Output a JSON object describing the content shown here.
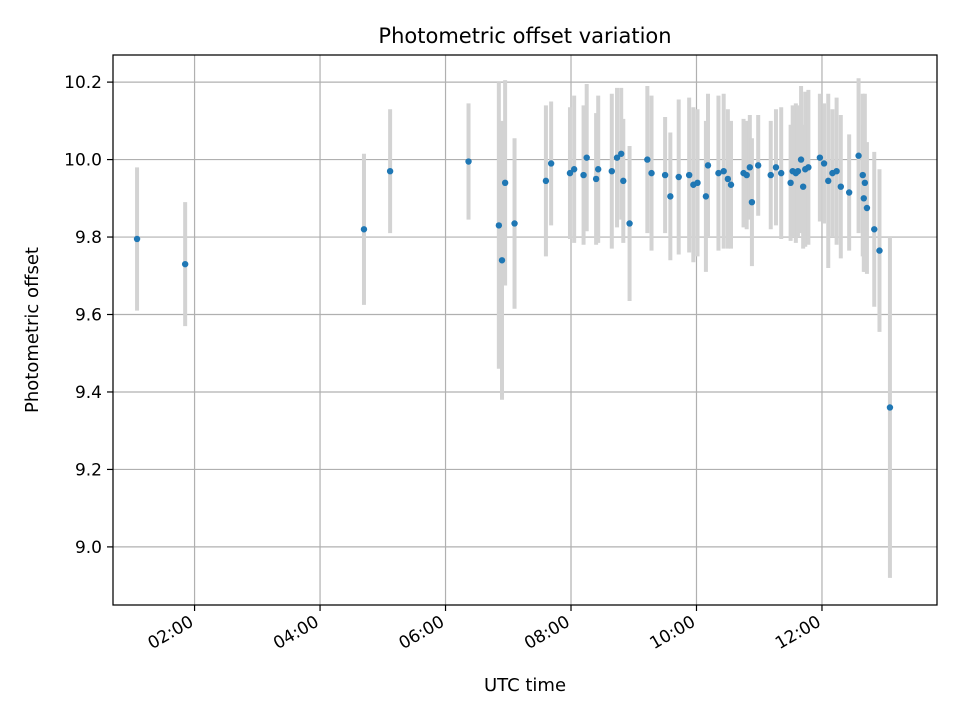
{
  "chart_data": {
    "type": "scatter",
    "title": "Photometric offset variation",
    "xlabel": "UTC time",
    "ylabel": "Photometric offset",
    "xlim": [
      "00:42",
      "13:50"
    ],
    "ylim": [
      8.85,
      10.27
    ],
    "x_ticks": [
      "02:00",
      "04:00",
      "06:00",
      "08:00",
      "10:00",
      "12:00"
    ],
    "y_ticks": [
      "9.0",
      "9.2",
      "9.4",
      "9.6",
      "9.8",
      "10.0",
      "10.2"
    ],
    "grid": true,
    "colors": {
      "point": "#1f77b4",
      "errorbar": "#d3d3d3",
      "grid": "#b0b0b0",
      "axis": "#000000"
    },
    "points": [
      {
        "x": "01:05",
        "y": 9.795,
        "err": 0.185
      },
      {
        "x": "01:51",
        "y": 9.73,
        "err": 0.16
      },
      {
        "x": "04:42",
        "y": 9.82,
        "err": 0.195
      },
      {
        "x": "05:07",
        "y": 9.97,
        "err": 0.16
      },
      {
        "x": "06:22",
        "y": 9.995,
        "err": 0.15
      },
      {
        "x": "06:51",
        "y": 9.83,
        "err": 0.37
      },
      {
        "x": "06:54",
        "y": 9.74,
        "err": 0.36
      },
      {
        "x": "06:57",
        "y": 9.94,
        "err": 0.265
      },
      {
        "x": "07:06",
        "y": 9.835,
        "err": 0.22
      },
      {
        "x": "07:36",
        "y": 9.945,
        "err": 0.195
      },
      {
        "x": "07:41",
        "y": 9.99,
        "err": 0.16
      },
      {
        "x": "07:59",
        "y": 9.965,
        "err": 0.17
      },
      {
        "x": "08:03",
        "y": 9.975,
        "err": 0.19
      },
      {
        "x": "08:12",
        "y": 9.96,
        "err": 0.18
      },
      {
        "x": "08:15",
        "y": 10.005,
        "err": 0.19
      },
      {
        "x": "08:24",
        "y": 9.95,
        "err": 0.17
      },
      {
        "x": "08:26",
        "y": 9.975,
        "err": 0.19
      },
      {
        "x": "08:39",
        "y": 9.97,
        "err": 0.2
      },
      {
        "x": "08:44",
        "y": 10.005,
        "err": 0.18
      },
      {
        "x": "08:48",
        "y": 10.015,
        "err": 0.17
      },
      {
        "x": "08:50",
        "y": 9.945,
        "err": 0.16
      },
      {
        "x": "08:56",
        "y": 9.835,
        "err": 0.2
      },
      {
        "x": "09:13",
        "y": 10.0,
        "err": 0.19
      },
      {
        "x": "09:17",
        "y": 9.965,
        "err": 0.2
      },
      {
        "x": "09:30",
        "y": 9.96,
        "err": 0.15
      },
      {
        "x": "09:35",
        "y": 9.905,
        "err": 0.165
      },
      {
        "x": "09:43",
        "y": 9.955,
        "err": 0.2
      },
      {
        "x": "09:53",
        "y": 9.96,
        "err": 0.2
      },
      {
        "x": "09:57",
        "y": 9.935,
        "err": 0.2
      },
      {
        "x": "10:01",
        "y": 9.94,
        "err": 0.19
      },
      {
        "x": "10:09",
        "y": 9.905,
        "err": 0.195
      },
      {
        "x": "10:11",
        "y": 9.985,
        "err": 0.185
      },
      {
        "x": "10:21",
        "y": 9.965,
        "err": 0.2
      },
      {
        "x": "10:26",
        "y": 9.97,
        "err": 0.2
      },
      {
        "x": "10:30",
        "y": 9.95,
        "err": 0.18
      },
      {
        "x": "10:33",
        "y": 9.935,
        "err": 0.165
      },
      {
        "x": "10:45",
        "y": 9.965,
        "err": 0.14
      },
      {
        "x": "10:48",
        "y": 9.96,
        "err": 0.14
      },
      {
        "x": "10:51",
        "y": 9.98,
        "err": 0.135
      },
      {
        "x": "10:53",
        "y": 9.89,
        "err": 0.165
      },
      {
        "x": "10:59",
        "y": 9.985,
        "err": 0.13
      },
      {
        "x": "11:11",
        "y": 9.96,
        "err": 0.14
      },
      {
        "x": "11:16",
        "y": 9.98,
        "err": 0.15
      },
      {
        "x": "11:21",
        "y": 9.965,
        "err": 0.17
      },
      {
        "x": "11:30",
        "y": 9.94,
        "err": 0.15
      },
      {
        "x": "11:32",
        "y": 9.97,
        "err": 0.17
      },
      {
        "x": "11:35",
        "y": 9.965,
        "err": 0.18
      },
      {
        "x": "11:37",
        "y": 9.97,
        "err": 0.17
      },
      {
        "x": "11:40",
        "y": 10.0,
        "err": 0.19
      },
      {
        "x": "11:42",
        "y": 9.93,
        "err": 0.16
      },
      {
        "x": "11:44",
        "y": 9.975,
        "err": 0.2
      },
      {
        "x": "11:47",
        "y": 9.98,
        "err": 0.2
      },
      {
        "x": "11:58",
        "y": 10.005,
        "err": 0.165
      },
      {
        "x": "12:02",
        "y": 9.99,
        "err": 0.155
      },
      {
        "x": "12:06",
        "y": 9.945,
        "err": 0.225
      },
      {
        "x": "12:10",
        "y": 9.965,
        "err": 0.165
      },
      {
        "x": "12:14",
        "y": 9.97,
        "err": 0.19
      },
      {
        "x": "12:18",
        "y": 9.93,
        "err": 0.185
      },
      {
        "x": "12:26",
        "y": 9.915,
        "err": 0.15
      },
      {
        "x": "12:35",
        "y": 10.01,
        "err": 0.2
      },
      {
        "x": "12:39",
        "y": 9.96,
        "err": 0.21
      },
      {
        "x": "12:40",
        "y": 9.9,
        "err": 0.19
      },
      {
        "x": "12:41",
        "y": 9.94,
        "err": 0.23
      },
      {
        "x": "12:43",
        "y": 9.875,
        "err": 0.17
      },
      {
        "x": "12:50",
        "y": 9.82,
        "err": 0.2
      },
      {
        "x": "12:55",
        "y": 9.765,
        "err": 0.21
      },
      {
        "x": "13:05",
        "y": 9.36,
        "err": 0.44
      }
    ]
  }
}
